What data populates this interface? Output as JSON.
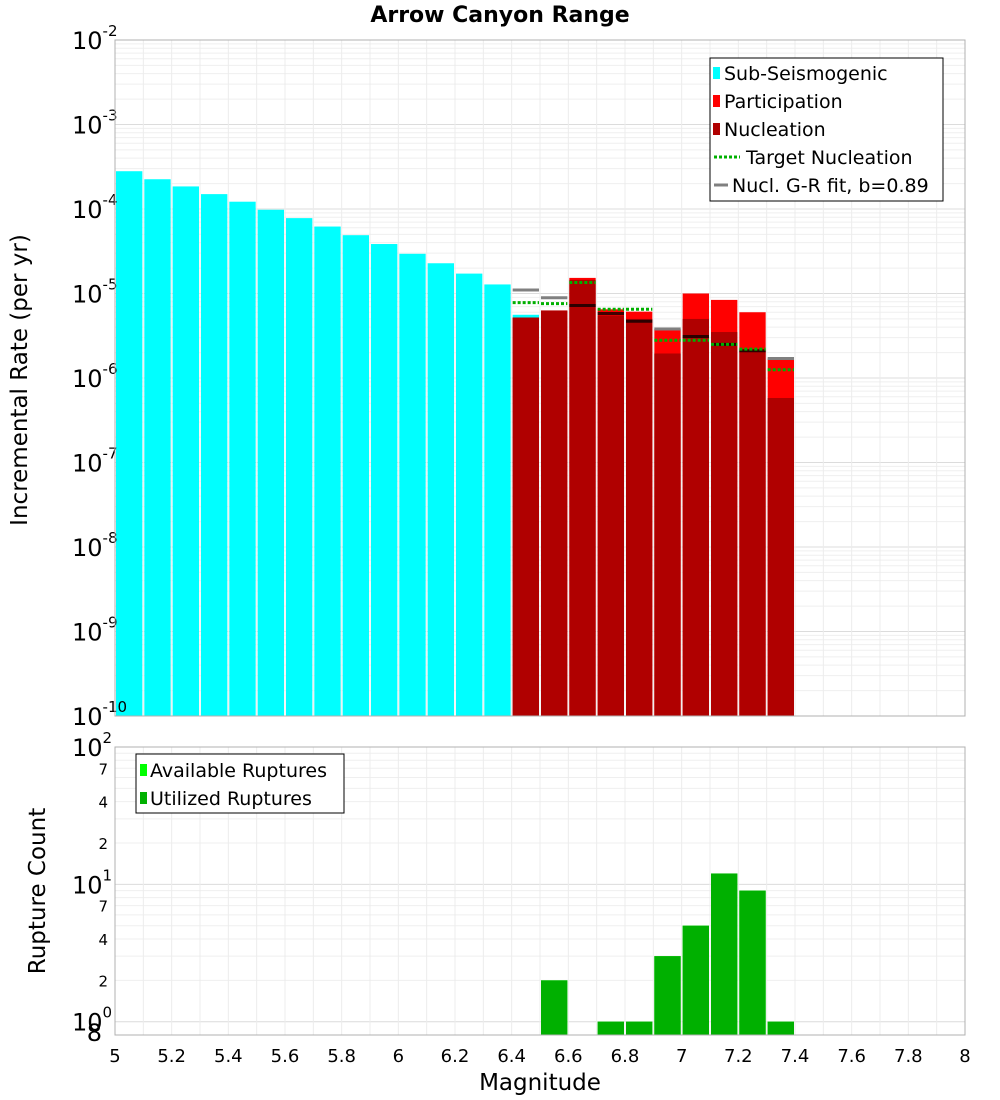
{
  "chart_data": [
    {
      "type": "bar",
      "title": "Arrow Canyon Range",
      "ylabel": "Incremental Rate (per yr)",
      "xlabel": "",
      "xlim": [
        5,
        8
      ],
      "ylim": [
        1e-10,
        0.01
      ],
      "yscale": "log",
      "bin_width": 0.1,
      "y_tick_labels": [
        {
          "base": "10",
          "exp": "-10"
        },
        {
          "base": "10",
          "exp": "-9"
        },
        {
          "base": "10",
          "exp": "-8"
        },
        {
          "base": "10",
          "exp": "-7"
        },
        {
          "base": "10",
          "exp": "-6"
        },
        {
          "base": "10",
          "exp": "-5"
        },
        {
          "base": "10",
          "exp": "-4"
        },
        {
          "base": "10",
          "exp": "-3"
        },
        {
          "base": "10",
          "exp": "-2"
        }
      ],
      "colors": {
        "sub_seismogenic": "#00ffff",
        "participation": "#ff0000",
        "nucleation": "#b00000",
        "target_nucleation": "#00b000",
        "gr_fit": "#808080",
        "gr_fit_over_bar": "#000000"
      },
      "series": [
        {
          "name": "Sub-Seismogenic",
          "x": [
            5.05,
            5.15,
            5.25,
            5.35,
            5.45,
            5.55,
            5.65,
            5.75,
            5.85,
            5.95,
            6.05,
            6.15,
            6.25,
            6.35,
            6.45
          ],
          "values": [
            0.00028,
            0.000225,
            0.000185,
            0.00015,
            0.000122,
            9.8e-05,
            7.8e-05,
            6.2e-05,
            4.9e-05,
            3.85e-05,
            2.95e-05,
            2.28e-05,
            1.72e-05,
            1.28e-05,
            5.6e-06
          ]
        },
        {
          "name": "Participation",
          "x": [
            6.45,
            6.55,
            6.65,
            6.75,
            6.85,
            6.95,
            7.05,
            7.15,
            7.25,
            7.35
          ],
          "values": [
            5.2e-06,
            6.3e-06,
            1.53e-05,
            6.5e-06,
            6.1e-06,
            3.8e-06,
            1e-05,
            8.4e-06,
            6e-06,
            1.7e-06
          ]
        },
        {
          "name": "Nucleation",
          "x": [
            6.45,
            6.55,
            6.65,
            6.75,
            6.85,
            6.95,
            7.05,
            7.15,
            7.25,
            7.35
          ],
          "values": [
            5.2e-06,
            6.3e-06,
            1.45e-05,
            5.5e-06,
            5e-06,
            1.95e-06,
            5e-06,
            3.5e-06,
            2.1e-06,
            5.8e-07
          ]
        },
        {
          "name": "Target Nucleation",
          "x": [
            6.45,
            6.55,
            6.65,
            6.75,
            6.85,
            6.95,
            7.05,
            7.15,
            7.25,
            7.35
          ],
          "values": [
            7.8e-06,
            7.6e-06,
            1.35e-05,
            6.5e-06,
            6.5e-06,
            2.8e-06,
            2.8e-06,
            2.5e-06,
            2.2e-06,
            1.25e-06
          ]
        },
        {
          "name": "Nucl. G-R fit, b=0.89",
          "x": [
            6.45,
            6.55,
            6.65,
            6.75,
            6.85,
            6.95,
            7.05,
            7.15,
            7.25,
            7.35
          ],
          "values": [
            1.1e-05,
            8.9e-06,
            7.2e-06,
            5.8e-06,
            4.7e-06,
            3.8e-06,
            3.1e-06,
            2.5e-06,
            2.1e-06,
            1.7e-06
          ]
        }
      ],
      "legend": {
        "position": "top-right",
        "entries": [
          "Sub-Seismogenic",
          "Participation",
          "Nucleation",
          "Target Nucleation",
          "Nucl. G-R fit, b=0.89"
        ]
      }
    },
    {
      "type": "bar",
      "title": "",
      "xlabel": "Magnitude",
      "ylabel": "Rupture Count",
      "xlim": [
        5,
        8
      ],
      "ylim": [
        0.8,
        100
      ],
      "yscale": "log",
      "bin_width": 0.1,
      "x_ticks": [
        "5",
        "5.2",
        "5.4",
        "5.6",
        "5.8",
        "6",
        "6.2",
        "6.4",
        "6.6",
        "6.8",
        "7",
        "7.2",
        "7.4",
        "7.6",
        "7.8",
        "8"
      ],
      "y_major_ticks": [
        {
          "value": 1,
          "base": "10",
          "exp": "0"
        },
        {
          "value": 10,
          "base": "10",
          "exp": "1"
        },
        {
          "value": 100,
          "base": "10",
          "exp": "2"
        }
      ],
      "y_minor_ticks": [
        {
          "value": 0.8,
          "label": "8"
        },
        {
          "value": 2,
          "label": "2"
        },
        {
          "value": 4,
          "label": "4"
        },
        {
          "value": 7,
          "label": "7"
        },
        {
          "value": 20,
          "label": "2"
        },
        {
          "value": 40,
          "label": "4"
        },
        {
          "value": 70,
          "label": "7"
        }
      ],
      "colors": {
        "available": "#00ff00",
        "utilized": "#00b000"
      },
      "series": [
        {
          "name": "Available Ruptures",
          "x": [
            6.55,
            6.75,
            6.85,
            6.95,
            7.05,
            7.15,
            7.25,
            7.35
          ],
          "values": [
            2,
            1,
            1,
            3,
            5,
            12,
            9,
            1
          ]
        },
        {
          "name": "Utilized Ruptures",
          "x": [
            6.55,
            6.75,
            6.85,
            6.95,
            7.05,
            7.15,
            7.25,
            7.35
          ],
          "values": [
            2,
            1,
            1,
            3,
            5,
            12,
            9,
            1
          ]
        }
      ],
      "legend": {
        "position": "top-left",
        "entries": [
          "Available Ruptures",
          "Utilized Ruptures"
        ]
      }
    }
  ]
}
